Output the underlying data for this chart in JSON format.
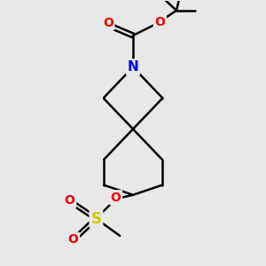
{
  "bg_color": "#e8e8e8",
  "bond_color": "#000000",
  "N_color": "#0000ee",
  "O_color": "#ee0000",
  "S_color": "#cccc00",
  "line_width": 1.8,
  "font_size_atom": 10,
  "xlim": [
    0,
    10
  ],
  "ylim": [
    0,
    10
  ],
  "spiro_x": 5.0,
  "spiro_y": 5.15,
  "N_x": 5.0,
  "N_y": 7.5
}
